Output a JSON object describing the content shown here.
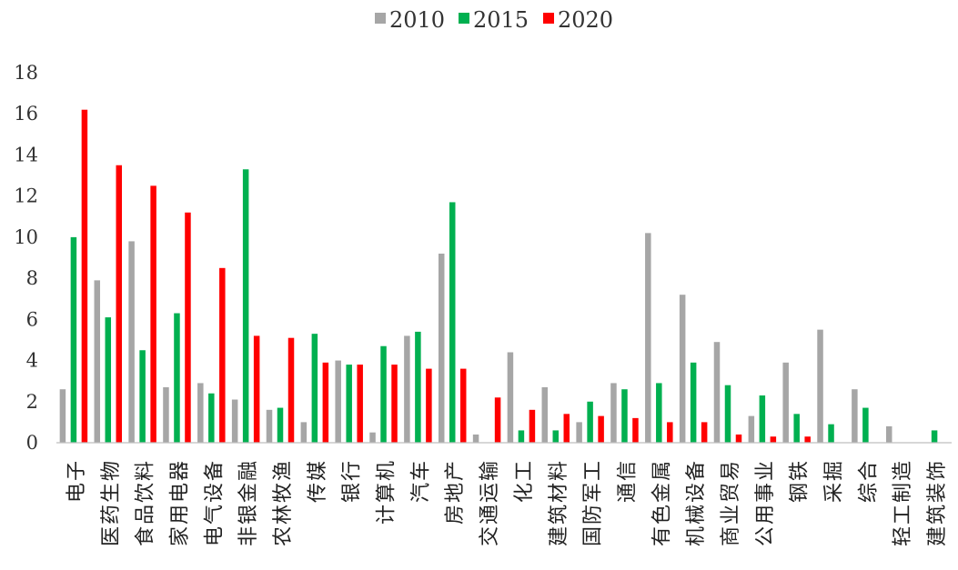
{
  "chart_data": {
    "type": "bar",
    "categories": [
      "电子",
      "医药生物",
      "食品饮料",
      "家用电器",
      "电气设备",
      "非银金融",
      "农林牧渔",
      "传媒",
      "银行",
      "计算机",
      "汽车",
      "房地产",
      "交通运输",
      "化工",
      "建筑材料",
      "国防军工",
      "通信",
      "有色金属",
      "机械设备",
      "商业贸易",
      "公用事业",
      "钢铁",
      "采掘",
      "综合",
      "轻工制造",
      "建筑装饰"
    ],
    "series": [
      {
        "name": "2010",
        "color": "#a6a6a6",
        "values": [
          2.6,
          7.9,
          9.8,
          2.7,
          2.9,
          2.1,
          1.6,
          1.0,
          4.0,
          0.5,
          5.2,
          9.2,
          0.4,
          4.4,
          2.7,
          1.0,
          2.9,
          10.2,
          7.2,
          4.9,
          1.3,
          3.9,
          5.5,
          2.6,
          0.8,
          0
        ]
      },
      {
        "name": "2015",
        "color": "#00b050",
        "values": [
          10.0,
          6.1,
          4.5,
          6.3,
          2.4,
          13.3,
          1.7,
          5.3,
          3.8,
          4.7,
          5.4,
          11.7,
          0,
          0.6,
          0.6,
          2.0,
          2.6,
          2.9,
          3.9,
          2.8,
          2.3,
          1.4,
          0.9,
          1.7,
          0,
          0.6
        ]
      },
      {
        "name": "2020",
        "color": "#ff0000",
        "values": [
          16.2,
          13.5,
          12.5,
          11.2,
          8.5,
          5.2,
          5.1,
          3.9,
          3.8,
          3.8,
          3.6,
          3.6,
          2.2,
          1.6,
          1.4,
          1.3,
          1.2,
          1.0,
          1.0,
          0.4,
          0.3,
          0.3,
          0,
          0,
          0,
          0
        ]
      }
    ],
    "ylim": [
      0,
      18
    ],
    "yticks": [
      0,
      2,
      4,
      6,
      8,
      10,
      12,
      14,
      16,
      18
    ],
    "legend_position": "top-center",
    "grid": false
  }
}
